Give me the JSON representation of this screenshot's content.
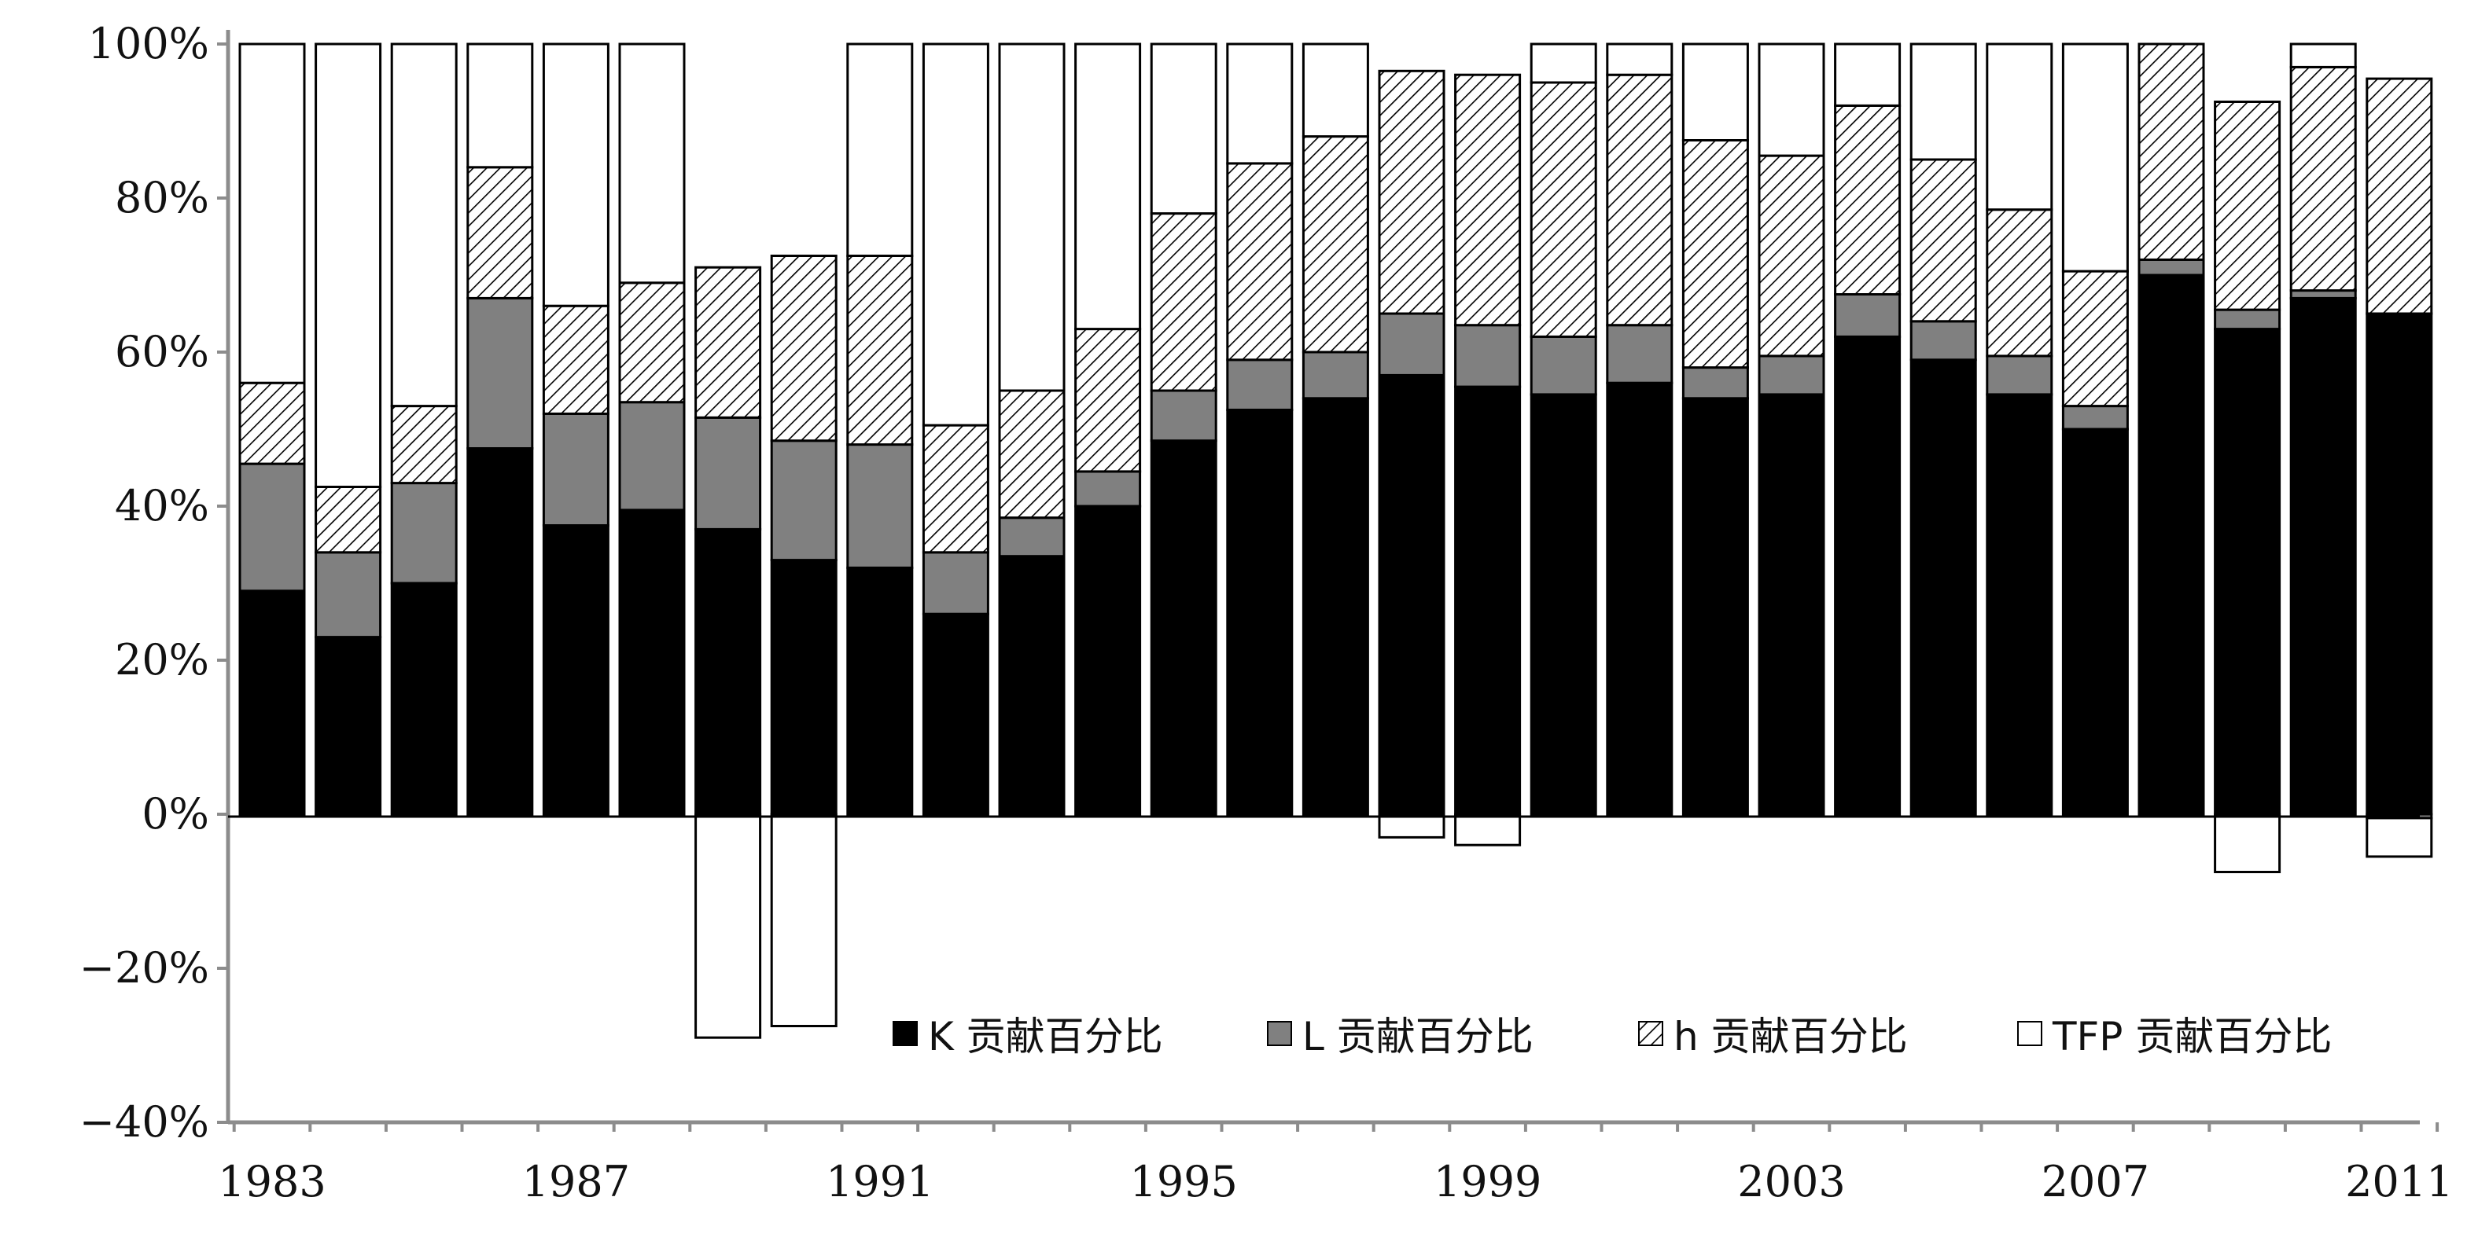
{
  "chart_data": {
    "type": "bar",
    "stacked": true,
    "categories": [
      "1983",
      "1984",
      "1985",
      "1986",
      "1987",
      "1988",
      "1989",
      "1990",
      "1991",
      "1992",
      "1993",
      "1994",
      "1995",
      "1996",
      "1997",
      "1998",
      "1999",
      "2000",
      "2001",
      "2002",
      "2003",
      "2004",
      "2005",
      "2006",
      "2007",
      "2008",
      "2009",
      "2010",
      "2011"
    ],
    "x_tick_labels": [
      "1983",
      "1987",
      "1991",
      "1995",
      "1999",
      "2003",
      "2007",
      "2011"
    ],
    "y_tick_labels": [
      "100%",
      "80%",
      "60%",
      "40%",
      "20%",
      "0%",
      "−20%",
      "−40%"
    ],
    "ylim": [
      -40,
      100
    ],
    "y_ticks": [
      100,
      80,
      60,
      40,
      20,
      0,
      -20,
      -40
    ],
    "grid": false,
    "legend_position": "bottom-right",
    "series": [
      {
        "name": "K 贡献百分比",
        "fill": "#000000",
        "values": [
          29,
          23,
          30,
          47.5,
          37.5,
          39.5,
          37,
          33,
          32,
          26,
          33.5,
          40,
          48.5,
          52.5,
          54,
          57,
          55.5,
          54.5,
          56,
          54,
          54.5,
          62,
          59,
          54.5,
          50,
          70,
          63,
          67,
          65
        ]
      },
      {
        "name": "L 贡献百分比",
        "fill": "#808080",
        "values": [
          16.5,
          11,
          13,
          19.5,
          14.5,
          14,
          14.5,
          15.5,
          16,
          8,
          5,
          4.5,
          6.5,
          6.5,
          6,
          8,
          8,
          7.5,
          7.5,
          4,
          5,
          5.5,
          5,
          5,
          3,
          2,
          2.5,
          1,
          -0.5
        ]
      },
      {
        "name": "h 贡献百分比",
        "fill": "hatch",
        "values": [
          10.5,
          8.5,
          10,
          17,
          14,
          15.5,
          19.5,
          24,
          24.5,
          16.5,
          16.5,
          18.5,
          23,
          25.5,
          28,
          31.5,
          32.5,
          33,
          32.5,
          29.5,
          26,
          24.5,
          21,
          19,
          17.5,
          28,
          27,
          29,
          30.5
        ]
      },
      {
        "name": "TFP 贡献百分比",
        "fill": "#ffffff",
        "values": [
          44,
          57.5,
          47,
          16,
          34,
          31,
          -29,
          -27.5,
          27.5,
          49.5,
          45,
          37,
          22,
          15.5,
          12,
          -3,
          -4,
          5,
          4,
          12.5,
          14.5,
          8,
          15,
          21.5,
          29.5,
          0,
          -7.5,
          3,
          -5
        ]
      }
    ]
  }
}
